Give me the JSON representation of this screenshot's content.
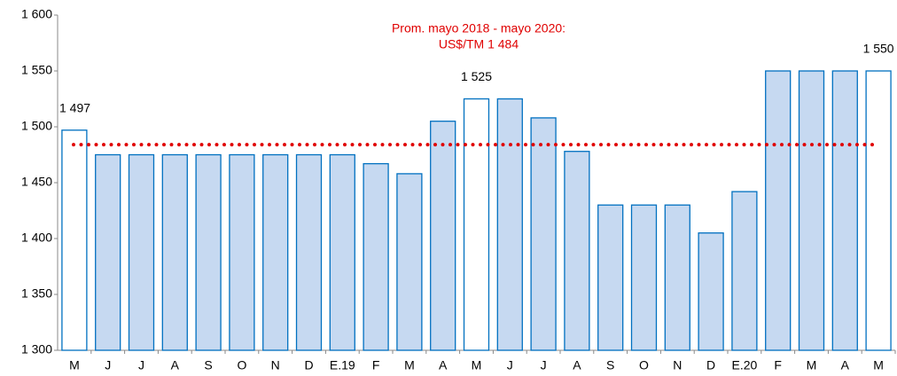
{
  "chart_data": {
    "type": "bar",
    "categories": [
      "M",
      "J",
      "J",
      "A",
      "S",
      "O",
      "N",
      "D",
      "E.19",
      "F",
      "M",
      "A",
      "M",
      "J",
      "J",
      "A",
      "S",
      "O",
      "N",
      "D",
      "E.20",
      "F",
      "M",
      "A",
      "M"
    ],
    "values": [
      1497,
      1475,
      1475,
      1475,
      1475,
      1475,
      1475,
      1475,
      1475,
      1467,
      1458,
      1505,
      1525,
      1525,
      1508,
      1478,
      1430,
      1430,
      1430,
      1405,
      1442,
      1550,
      1550,
      1550,
      1550
    ],
    "value_labels": [
      "1 497",
      null,
      null,
      null,
      null,
      null,
      null,
      null,
      null,
      null,
      null,
      null,
      "1 525",
      null,
      null,
      null,
      null,
      null,
      null,
      null,
      null,
      null,
      null,
      null,
      "1 550"
    ],
    "colors": [
      "#ffffff",
      "#c6d9f1",
      "#c6d9f1",
      "#c6d9f1",
      "#c6d9f1",
      "#c6d9f1",
      "#c6d9f1",
      "#c6d9f1",
      "#c6d9f1",
      "#c6d9f1",
      "#c6d9f1",
      "#c6d9f1",
      "#ffffff",
      "#c6d9f1",
      "#c6d9f1",
      "#c6d9f1",
      "#c6d9f1",
      "#c6d9f1",
      "#c6d9f1",
      "#c6d9f1",
      "#c6d9f1",
      "#c6d9f1",
      "#c6d9f1",
      "#c6d9f1",
      "#ffffff"
    ],
    "edge_color": "#0070c0",
    "ylim": [
      1300,
      1600
    ],
    "yticks": [
      {
        "value": 1300,
        "label": "1 300"
      },
      {
        "value": 1350,
        "label": "1 350"
      },
      {
        "value": 1400,
        "label": "1 400"
      },
      {
        "value": 1450,
        "label": "1 450"
      },
      {
        "value": 1500,
        "label": "1 500"
      },
      {
        "value": 1550,
        "label": "1 550"
      },
      {
        "value": 1600,
        "label": "1 600"
      }
    ],
    "grid": false,
    "annotation": {
      "lines": [
        "Prom. mayo 2018 - mayo 2020:",
        "US$/TM 1 484"
      ],
      "value": 1484,
      "color": "#e00000"
    }
  }
}
